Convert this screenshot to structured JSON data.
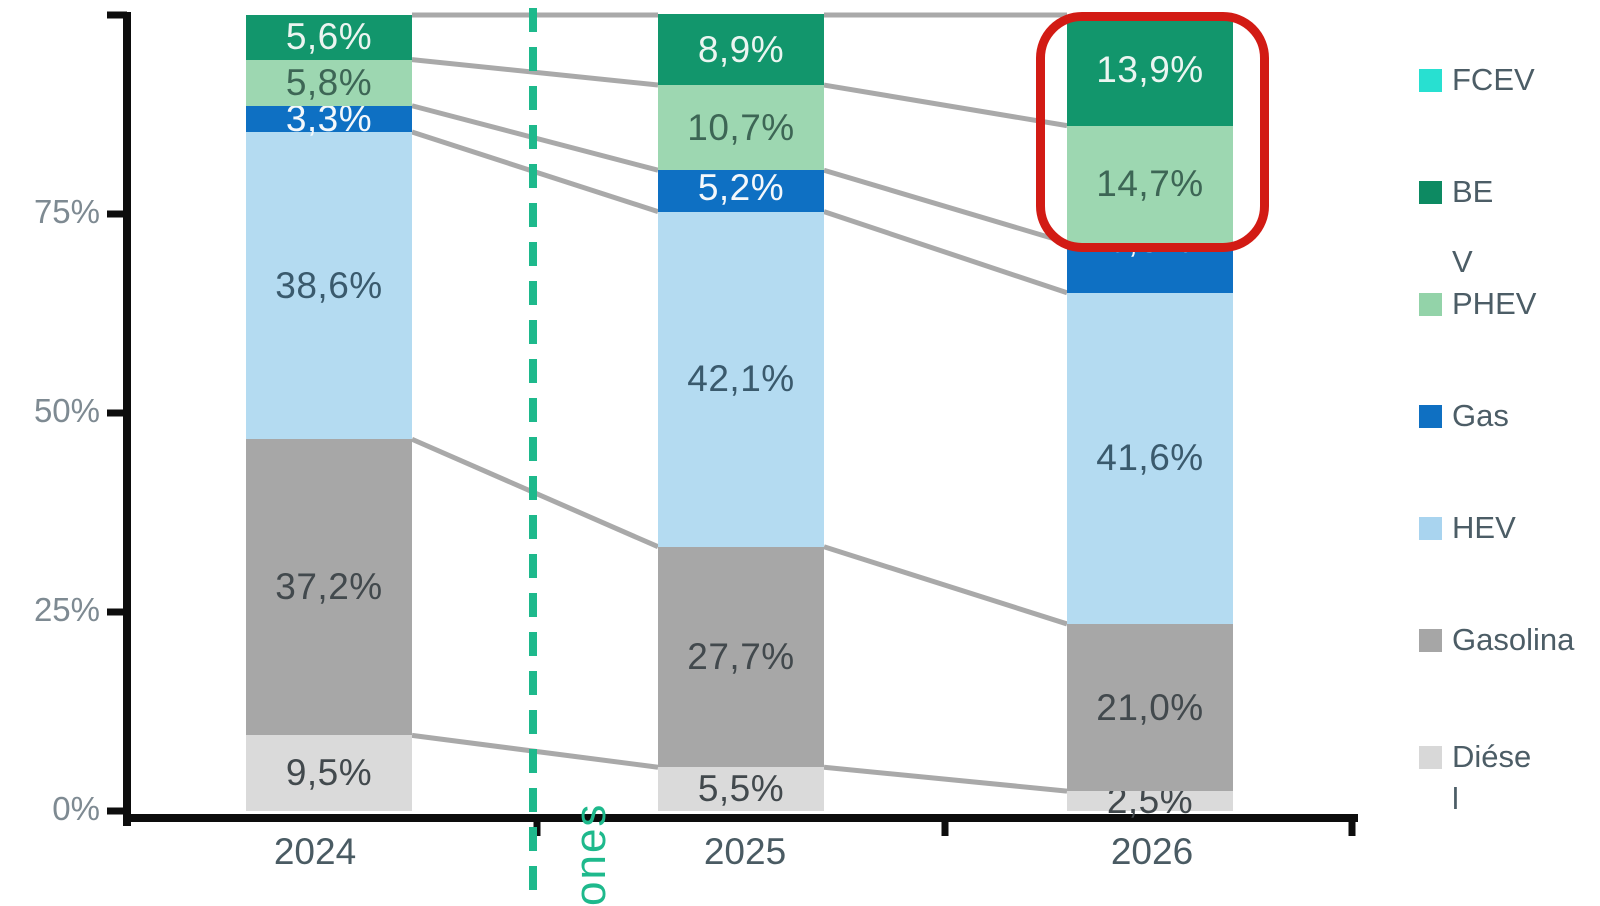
{
  "chart_data": {
    "type": "bar",
    "stacked": true,
    "orientation": "vertical",
    "value_unit": "%",
    "decimal_separator": ",",
    "grid": false,
    "categories": [
      "2024",
      "2025",
      "2026"
    ],
    "series": [
      {
        "name": "Diésel",
        "color": "#dadada",
        "label_color": "#42494d",
        "values": [
          9.5,
          5.5,
          2.5
        ]
      },
      {
        "name": "Gasolina",
        "color": "#a7a7a7",
        "label_color": "#42494d",
        "values": [
          37.2,
          27.7,
          21.0
        ]
      },
      {
        "name": "HEV",
        "color": "#b4dbf1",
        "label_color": "#3a5a6d",
        "values": [
          38.6,
          42.1,
          41.6
        ]
      },
      {
        "name": "Gas",
        "color": "#0e70c3",
        "label_color": "#f4f8fb",
        "values": [
          3.3,
          5.2,
          6.3
        ],
        "label_dy": [
          0,
          -3,
          -28
        ]
      },
      {
        "name": "PHEV",
        "color": "#9dd7b1",
        "label_color": "#3d6655",
        "values": [
          5.8,
          10.7,
          14.7
        ]
      },
      {
        "name": "BEV",
        "color": "#12966c",
        "label_color": "#ebf5f1",
        "values": [
          5.6,
          8.9,
          13.9
        ]
      },
      {
        "name": "FCEV",
        "color": "#28e0d1",
        "label_color": "#ffffff",
        "values": [
          0,
          0,
          0
        ]
      }
    ],
    "y_axis": {
      "range": [
        0,
        100
      ],
      "tick_labels": [
        "0%",
        "25%",
        "50%",
        "75%"
      ],
      "tick_pcts": [
        0,
        25,
        50,
        75
      ],
      "unlabeled_top_tick_pct": 100
    },
    "legend": {
      "position": "right",
      "items": [
        {
          "id": "fcev",
          "color": "#28e0d1",
          "lines": [
            "FCEV"
          ],
          "swatch_line": 0
        },
        {
          "id": "bev",
          "color": "#0d8a62",
          "lines": [
            "BE"
          ],
          "swatch_line": 0
        },
        {
          "id": "phev",
          "color": "#93d3a9",
          "lines": [
            "V",
            "PHEV"
          ],
          "swatch_line": 1
        },
        {
          "id": "gas",
          "color": "#0f70c2",
          "lines": [
            "Gas"
          ],
          "swatch_line": 0
        },
        {
          "id": "hev",
          "color": "#a9d4ef",
          "lines": [
            "HEV"
          ],
          "swatch_line": 0
        },
        {
          "id": "gasolina",
          "color": "#a6a6a6",
          "lines": [
            "Gasolina"
          ],
          "swatch_line": 0
        },
        {
          "id": "diesel",
          "color": "#d8d8d8",
          "lines": [
            "Diése",
            "l"
          ],
          "swatch_line": 0
        }
      ]
    }
  },
  "annotations": {
    "rotated_text": "ones",
    "dashed_line_color": "#1eb98c",
    "highlight_color": "#d21b14",
    "connector_color": "#a9a9a9",
    "axis_color": "#0d0d0d"
  }
}
